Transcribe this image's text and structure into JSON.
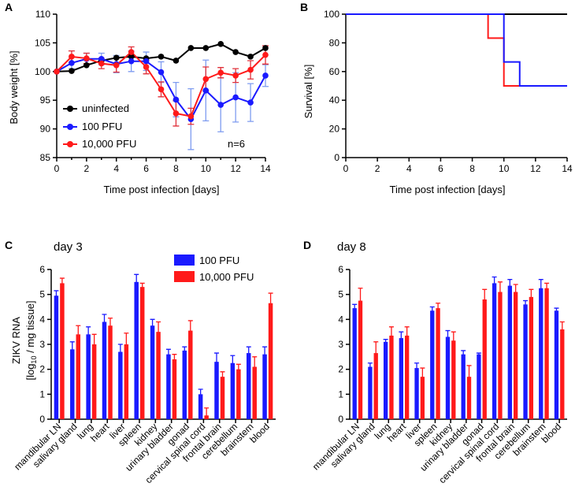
{
  "colors": {
    "uninfected": "#000000",
    "pfu100": "#1a1aff",
    "pfu10000": "#ff1a1a",
    "pfu100_err": "#7f9cf0",
    "pfu10000_err": "#e0303a"
  },
  "chart_data": [
    {
      "id": "A",
      "type": "line",
      "panel_label": "A",
      "title": "",
      "xlabel": "Time post infection [days]",
      "ylabel": "Body weight  [%]",
      "xlim": [
        0,
        14
      ],
      "ylim": [
        85,
        110
      ],
      "xticks": [
        0,
        2,
        4,
        6,
        8,
        10,
        12,
        14
      ],
      "yticks": [
        85,
        90,
        95,
        100,
        105,
        110
      ],
      "annotation": "n=6",
      "series": [
        {
          "name": "uninfected",
          "color": "#000000",
          "x": [
            0,
            1,
            2,
            3,
            4,
            5,
            6,
            7,
            8,
            9,
            10,
            11,
            12,
            13,
            14
          ],
          "y": [
            100,
            100.1,
            101.1,
            101.9,
            102.4,
            102.6,
            102.3,
            102.6,
            101.9,
            104.1,
            104.1,
            104.8,
            103.4,
            102.6,
            104.1
          ],
          "err": [
            0,
            0,
            0,
            0,
            0,
            0,
            0,
            0,
            0,
            0,
            0,
            0,
            0,
            0,
            0
          ]
        },
        {
          "name": "100 PFU",
          "color": "#1a1aff",
          "x": [
            0,
            1,
            2,
            3,
            4,
            5,
            6,
            7,
            8,
            9,
            10,
            11,
            12,
            13,
            14
          ],
          "y": [
            100,
            101.5,
            102.2,
            102.2,
            101.3,
            101.8,
            101.8,
            99.9,
            95.1,
            91.7,
            96.7,
            94.2,
            95.5,
            94.6,
            99.3
          ],
          "err": [
            0,
            1.0,
            1.0,
            1.0,
            1.5,
            1.8,
            1.6,
            1.8,
            3.0,
            5.3,
            5.3,
            4.7,
            4.3,
            3.3,
            1.9
          ]
        },
        {
          "name": "10,000 PFU",
          "color": "#ff1a1a",
          "x": [
            0,
            1,
            2,
            3,
            4,
            5,
            6,
            7,
            8,
            9,
            10,
            11,
            12,
            13,
            14
          ],
          "y": [
            100,
            102.6,
            102.3,
            101.4,
            101.1,
            103.4,
            100.8,
            96.9,
            92.7,
            92.2,
            98.7,
            99.8,
            99.3,
            100.3,
            102.9
          ],
          "err": [
            0,
            1.0,
            0.9,
            0.9,
            1.2,
            0.9,
            1.2,
            1.3,
            2.2,
            1.4,
            2.1,
            0.9,
            1.2,
            1.6,
            1.6
          ]
        }
      ]
    },
    {
      "id": "B",
      "type": "line",
      "step": true,
      "panel_label": "B",
      "title": "",
      "xlabel": "Time post infection [days]",
      "ylabel": "Survival  [%]",
      "xlim": [
        0,
        14
      ],
      "ylim": [
        0,
        100
      ],
      "xticks": [
        0,
        2,
        4,
        6,
        8,
        10,
        12,
        14
      ],
      "yticks": [
        0,
        20,
        40,
        60,
        80,
        100
      ],
      "series": [
        {
          "name": "uninfected",
          "color": "#000000",
          "x": [
            0,
            14
          ],
          "y": [
            100,
            100
          ]
        },
        {
          "name": "100 PFU",
          "color": "#1a1aff",
          "x": [
            0,
            10,
            11,
            14
          ],
          "y": [
            100,
            66.7,
            50,
            50
          ]
        },
        {
          "name": "10,000 PFU",
          "color": "#ff1a1a",
          "x": [
            0,
            9,
            10,
            14
          ],
          "y": [
            100,
            83.3,
            50,
            50
          ]
        }
      ]
    },
    {
      "id": "C",
      "type": "bar",
      "panel_label": "C",
      "title": "day 3",
      "ylabel_line1": "ZIKV RNA",
      "ylabel_line2_pre": "[log",
      "ylabel_line2_sub": "10",
      "ylabel_line2_post": " / mg tissue]",
      "ylim": [
        0,
        6
      ],
      "yticks": [
        0,
        1,
        2,
        3,
        4,
        5,
        6
      ],
      "categories": [
        "mandibular LN",
        "salivary gland",
        "lung",
        "heart",
        "liver",
        "spleen",
        "kidney",
        "urinary bladder",
        "gonad",
        "cervical spinal cord",
        "frontal brain",
        "cerebellum",
        "brainstem",
        "blood"
      ],
      "series": [
        {
          "name": "100 PFU",
          "color": "#1a1aff",
          "values": [
            4.95,
            2.8,
            3.4,
            3.9,
            2.7,
            5.5,
            3.75,
            2.6,
            2.75,
            1.0,
            2.3,
            2.25,
            2.65,
            2.6
          ],
          "err": [
            0.2,
            0.3,
            0.3,
            0.3,
            0.3,
            0.3,
            0.25,
            0.2,
            0.15,
            0.2,
            0.35,
            0.3,
            0.25,
            0.3
          ]
        },
        {
          "name": "10,000 PFU",
          "color": "#ff1a1a",
          "values": [
            5.45,
            3.4,
            3.0,
            3.75,
            3.0,
            5.3,
            3.5,
            2.4,
            3.55,
            0.15,
            1.7,
            2.0,
            2.1,
            4.65
          ],
          "err": [
            0.2,
            0.35,
            0.4,
            0.3,
            0.45,
            0.15,
            0.4,
            0.2,
            0.4,
            0.3,
            0.2,
            0.2,
            0.4,
            0.4
          ]
        }
      ]
    },
    {
      "id": "D",
      "type": "bar",
      "panel_label": "D",
      "title": "day 8",
      "ylim": [
        0,
        6
      ],
      "yticks": [
        0,
        1,
        2,
        3,
        4,
        5,
        6
      ],
      "categories": [
        "mandibular LN",
        "salivary gland",
        "lung",
        "heart",
        "liver",
        "spleen",
        "kidney",
        "urinary bladder",
        "gonad",
        "cervical spinal cord",
        "frontal brain",
        "cerebellum",
        "brainstem",
        "blood"
      ],
      "series": [
        {
          "name": "100 PFU",
          "color": "#1a1aff",
          "values": [
            4.45,
            2.1,
            3.1,
            3.25,
            2.05,
            4.35,
            3.3,
            2.6,
            2.6,
            5.45,
            5.35,
            4.6,
            5.25,
            4.35
          ],
          "err": [
            0.15,
            0.15,
            0.1,
            0.25,
            0.2,
            0.15,
            0.25,
            0.15,
            0.05,
            0.25,
            0.25,
            0.15,
            0.35,
            0.1
          ]
        },
        {
          "name": "10,000 PFU",
          "color": "#ff1a1a",
          "values": [
            4.75,
            2.65,
            3.35,
            3.35,
            1.7,
            4.45,
            3.15,
            1.7,
            4.8,
            5.1,
            5.1,
            4.9,
            5.25,
            3.6
          ],
          "err": [
            0.5,
            0.45,
            0.35,
            0.35,
            0.35,
            0.2,
            0.35,
            0.45,
            0.4,
            0.4,
            0.3,
            0.3,
            0.2,
            0.3
          ]
        }
      ]
    }
  ],
  "legend_ab": [
    "uninfected",
    "100 PFU",
    "10,000 PFU"
  ],
  "legend_c": [
    "100 PFU",
    "10,000 PFU"
  ]
}
